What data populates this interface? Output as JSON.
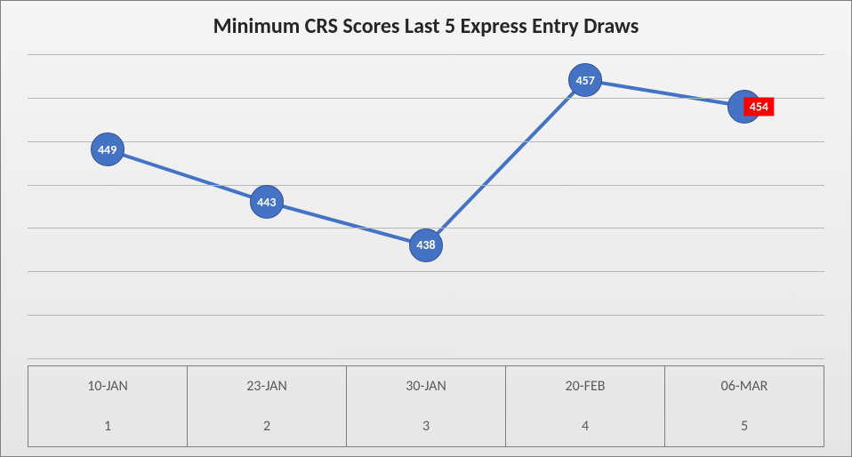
{
  "chart": {
    "type": "line",
    "title": "Minimum CRS Scores Last 5 Express Entry Draws",
    "title_fontsize": 24,
    "title_color": "#262626",
    "background_gradient": {
      "from": "#f5f5f5",
      "to": "#e6e6e6"
    },
    "line_color": "#4472c4",
    "line_width": 4,
    "marker_fill": "#4472c4",
    "marker_border": "#2f528f",
    "marker_size": 36,
    "marker_label_color": "#ffffff",
    "marker_label_fontsize": 14,
    "grid_color": "#b7b7b7",
    "border_color": "#7f7f7f",
    "axis_label_color": "#595959",
    "axis_label_fontsize": 16,
    "ylim": [
      425,
      460
    ],
    "gridline_y": [
      425,
      430,
      435,
      440,
      445,
      450,
      455,
      460
    ],
    "highlight_index": 4,
    "highlight_bg": "#ff0000",
    "highlight_label_color": "#ffffff",
    "categories": [
      "10-JAN",
      "23-JAN",
      "30-JAN",
      "20-FEB",
      "06-MAR"
    ],
    "indices": [
      "1",
      "2",
      "3",
      "4",
      "5"
    ],
    "values": [
      449,
      443,
      438,
      457,
      454
    ]
  }
}
